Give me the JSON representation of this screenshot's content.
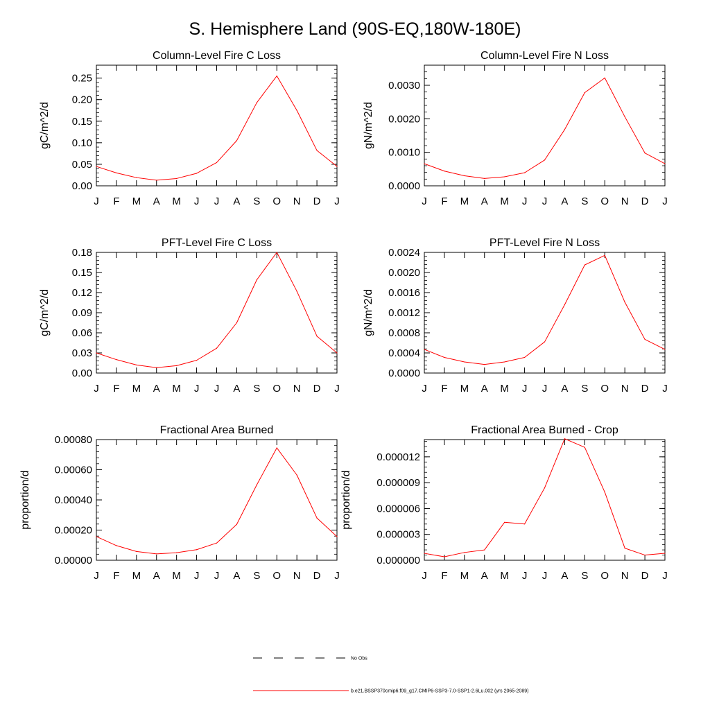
{
  "page": {
    "title": "S. Hemisphere Land (90S-EQ,180W-180E)"
  },
  "chart_data": [
    {
      "type": "line",
      "title": "Column-Level Fire C Loss",
      "xlabel": "",
      "ylabel": "gC/m^2/d",
      "categories": [
        "J",
        "F",
        "M",
        "A",
        "M",
        "J",
        "J",
        "A",
        "S",
        "O",
        "N",
        "D",
        "J"
      ],
      "ylim": [
        0,
        0.28
      ],
      "yticks": [
        "0.00",
        "0.05",
        "0.10",
        "0.15",
        "0.20",
        "0.25"
      ],
      "ytick_values": [
        0,
        0.05,
        0.1,
        0.15,
        0.2,
        0.25
      ],
      "series": [
        {
          "values": [
            0.045,
            0.03,
            0.019,
            0.013,
            0.017,
            0.029,
            0.054,
            0.105,
            0.193,
            0.255,
            0.175,
            0.082,
            0.045
          ],
          "color": "#ff0000"
        }
      ]
    },
    {
      "type": "line",
      "title": "Column-Level Fire N Loss",
      "xlabel": "",
      "ylabel": "gN/m^2/d",
      "categories": [
        "J",
        "F",
        "M",
        "A",
        "M",
        "J",
        "J",
        "A",
        "S",
        "O",
        "N",
        "D",
        "J"
      ],
      "ylim": [
        0,
        0.0036
      ],
      "yticks": [
        "0.0000",
        "0.0010",
        "0.0020",
        "0.0030"
      ],
      "ytick_values": [
        0,
        0.001,
        0.002,
        0.003
      ],
      "series": [
        {
          "values": [
            0.00066,
            0.00044,
            0.0003,
            0.00022,
            0.00027,
            0.00039,
            0.00077,
            0.00168,
            0.00278,
            0.00322,
            0.00206,
            0.00098,
            0.00066
          ],
          "color": "#ff0000"
        }
      ]
    },
    {
      "type": "line",
      "title": "PFT-Level Fire C Loss",
      "xlabel": "",
      "ylabel": "gC/m^2/d",
      "categories": [
        "J",
        "F",
        "M",
        "A",
        "M",
        "J",
        "J",
        "A",
        "S",
        "O",
        "N",
        "D",
        "J"
      ],
      "ylim": [
        0,
        0.18
      ],
      "yticks": [
        "0.00",
        "0.03",
        "0.06",
        "0.09",
        "0.12",
        "0.15",
        "0.18"
      ],
      "ytick_values": [
        0,
        0.03,
        0.06,
        0.09,
        0.12,
        0.15,
        0.18
      ],
      "series": [
        {
          "values": [
            0.03,
            0.02,
            0.012,
            0.008,
            0.011,
            0.019,
            0.037,
            0.075,
            0.139,
            0.18,
            0.122,
            0.055,
            0.03
          ],
          "color": "#ff0000"
        }
      ]
    },
    {
      "type": "line",
      "title": "PFT-Level Fire N Loss",
      "xlabel": "",
      "ylabel": "gN/m^2/d",
      "categories": [
        "J",
        "F",
        "M",
        "A",
        "M",
        "J",
        "J",
        "A",
        "S",
        "O",
        "N",
        "D",
        "J"
      ],
      "ylim": [
        0,
        0.0024
      ],
      "yticks": [
        "0.0000",
        "0.0004",
        "0.0008",
        "0.0012",
        "0.0016",
        "0.0020",
        "0.0024"
      ],
      "ytick_values": [
        0,
        0.0004,
        0.0008,
        0.0012,
        0.0016,
        0.002,
        0.0024
      ],
      "series": [
        {
          "values": [
            0.00047,
            0.00031,
            0.00022,
            0.00017,
            0.00022,
            0.00031,
            0.00062,
            0.00136,
            0.00215,
            0.00234,
            0.00141,
            0.00067,
            0.00047
          ],
          "color": "#ff0000"
        }
      ]
    },
    {
      "type": "line",
      "title": "Fractional Area Burned",
      "xlabel": "",
      "ylabel": "proportion/d",
      "categories": [
        "J",
        "F",
        "M",
        "A",
        "M",
        "J",
        "J",
        "A",
        "S",
        "O",
        "N",
        "D",
        "J"
      ],
      "ylim": [
        0,
        0.0008
      ],
      "yticks": [
        "0.00000",
        "0.00020",
        "0.00040",
        "0.00060",
        "0.00080"
      ],
      "ytick_values": [
        0,
        0.0002,
        0.0004,
        0.0006,
        0.0008
      ],
      "series": [
        {
          "values": [
            0.000157,
            9.7e-05,
            5.8e-05,
            4.2e-05,
            5e-05,
            7e-05,
            0.000114,
            0.000238,
            0.0005,
            0.000745,
            0.000565,
            0.00028,
            0.000157
          ],
          "color": "#ff0000"
        }
      ]
    },
    {
      "type": "line",
      "title": "Fractional Area Burned - Crop",
      "xlabel": "",
      "ylabel": "proportion/d",
      "categories": [
        "J",
        "F",
        "M",
        "A",
        "M",
        "J",
        "J",
        "A",
        "S",
        "O",
        "N",
        "D",
        "J"
      ],
      "ylim": [
        0,
        1.4e-05
      ],
      "yticks": [
        "0.000000",
        "0.000003",
        "0.000006",
        "0.000009",
        "0.000012"
      ],
      "ytick_values": [
        0,
        3e-06,
        6e-06,
        9e-06,
        1.2e-05
      ],
      "series": [
        {
          "values": [
            8e-07,
            4e-07,
            9e-07,
            1.2e-06,
            4.4e-06,
            4.2e-06,
            8.4e-06,
            1.41e-05,
            1.31e-05,
            7.9e-06,
            1.4e-06,
            6e-07,
            8e-07
          ],
          "color": "#ff0000"
        }
      ]
    }
  ],
  "legend": {
    "placement": "bottom-center",
    "entries": [
      {
        "label": "No Obs",
        "style": "dashed",
        "color": "#000000"
      },
      {
        "label": "b.e21.BSSP370cmip6.f09_g17.CMIP6-SSP3-7.0-SSP1-2.6Lu.002 (yrs 2065-2089)",
        "style": "solid",
        "color": "#ff0000"
      }
    ]
  }
}
